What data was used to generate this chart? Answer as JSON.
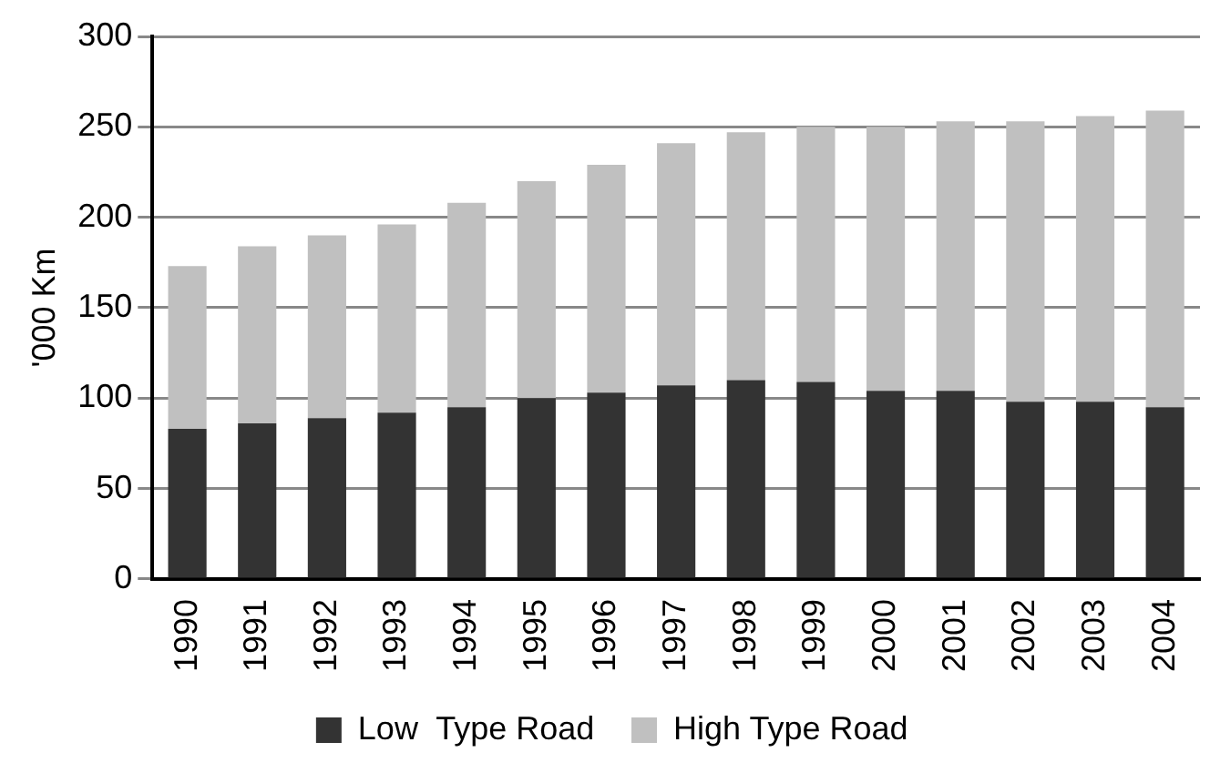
{
  "chart_data": {
    "type": "bar",
    "stacked": true,
    "ylabel": "'000 Km",
    "categories": [
      "1990",
      "1991",
      "1992",
      "1993",
      "1994",
      "1995",
      "1996",
      "1997",
      "1998",
      "1999",
      "2000",
      "2001",
      "2002",
      "2003",
      "2004"
    ],
    "series": [
      {
        "name": "Low  Type Road",
        "color": "#333333",
        "values": [
          83,
          86,
          89,
          92,
          95,
          100,
          103,
          107,
          110,
          109,
          104,
          104,
          98,
          98,
          95
        ]
      },
      {
        "name": "High Type Road",
        "color": "#c0c0c0",
        "values": [
          90,
          98,
          101,
          104,
          113,
          120,
          126,
          134,
          137,
          141,
          146,
          149,
          155,
          158,
          164
        ]
      }
    ],
    "ylim": [
      0,
      300
    ],
    "yticks": [
      0,
      50,
      100,
      150,
      200,
      250,
      300
    ],
    "grid": "y",
    "legend": "bottom"
  }
}
